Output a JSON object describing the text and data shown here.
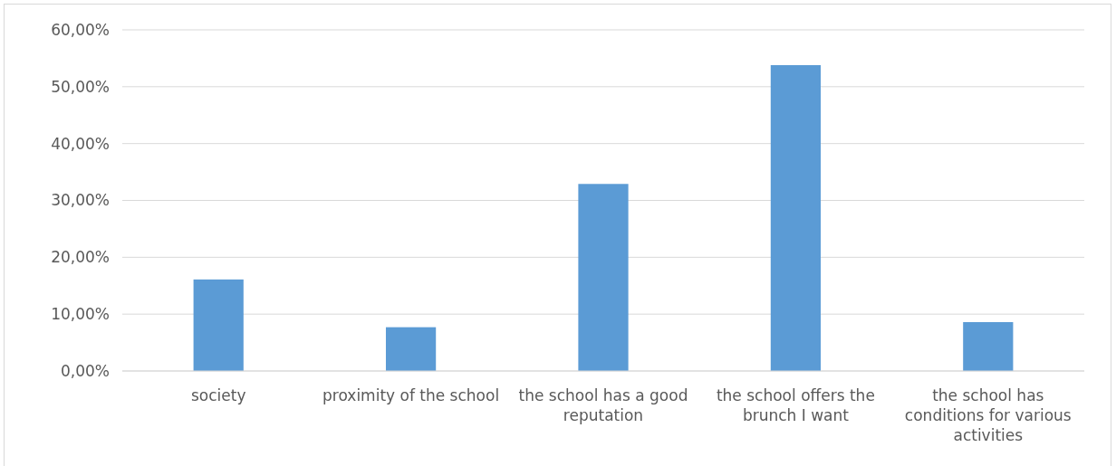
{
  "chart_data": {
    "type": "bar",
    "categories": [
      "society",
      "proximity of the school",
      "the school has a good reputation",
      "the school offers the brunch I want",
      "the school has conditions for various activities"
    ],
    "values": [
      16.1,
      7.7,
      32.9,
      53.8,
      8.6
    ],
    "color": "#5b9bd5",
    "ylim": [
      0,
      60
    ],
    "yticks": [
      {
        "value": 0,
        "label": "0,00%"
      },
      {
        "value": 10,
        "label": "10,00%"
      },
      {
        "value": 20,
        "label": "20,00%"
      },
      {
        "value": 30,
        "label": "30,00%"
      },
      {
        "value": 40,
        "label": "40,00%"
      },
      {
        "value": 50,
        "label": "50,00%"
      },
      {
        "value": 60,
        "label": "60,00%"
      }
    ],
    "grid": "y"
  }
}
